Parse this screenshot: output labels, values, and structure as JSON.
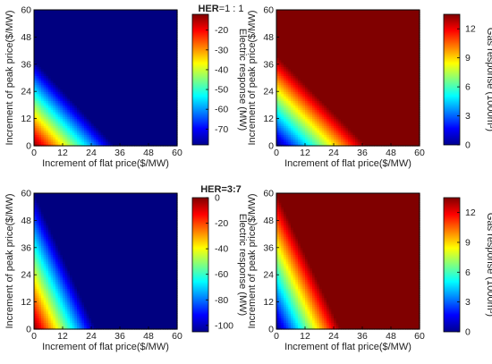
{
  "chart_data": [
    {
      "type": "heatmap",
      "title": "HER=1 : 1",
      "title_bold": "HER",
      "title_rest": "=1 : 1",
      "xlabel": "Increment of flat price($/MW)",
      "ylabel": "Increment of peak price($/MW)",
      "xlim": [
        0,
        60
      ],
      "ylim": [
        0,
        60
      ],
      "xticks": [
        0,
        12,
        24,
        36,
        48,
        60
      ],
      "yticks": [
        0,
        12,
        24,
        36,
        48,
        60
      ],
      "colorbar_label": "Electric response (MW)",
      "colorbar_ticks": [
        -20,
        -30,
        -40,
        -50,
        -60,
        -70
      ],
      "color_range": [
        -78,
        -12
      ],
      "boundary": {
        "x_intercept": 34,
        "y_intercept": 38
      },
      "value_at_origin": -12,
      "value_beyond_boundary": -78,
      "colormap": "jet"
    },
    {
      "type": "heatmap",
      "title": "",
      "xlabel": "Increment of flat price($/MW)",
      "ylabel": "Increment of peak price($/MW)",
      "xlim": [
        0,
        60
      ],
      "ylim": [
        0,
        60
      ],
      "xticks": [
        0,
        12,
        24,
        36,
        48,
        60
      ],
      "yticks": [
        0,
        12,
        24,
        36,
        48,
        60
      ],
      "colorbar_label": "Gas response (1000m³)",
      "colorbar_ticks": [
        0,
        3,
        6,
        9,
        12
      ],
      "color_range": [
        0,
        13.5
      ],
      "boundary": {
        "x_intercept": 38,
        "y_intercept": 40
      },
      "value_at_origin": 0,
      "value_beyond_boundary": 13.5,
      "colormap": "jet"
    },
    {
      "type": "heatmap",
      "title": "HER=3:7",
      "title_bold": "HER=3:7",
      "title_rest": "",
      "xlabel": "Increment of flat price($/MW)",
      "ylabel": "Increment of peak price($/MW)",
      "xlim": [
        0,
        60
      ],
      "ylim": [
        0,
        60
      ],
      "xticks": [
        0,
        12,
        24,
        36,
        48,
        60
      ],
      "yticks": [
        0,
        12,
        24,
        36,
        48,
        60
      ],
      "colorbar_label": "Electric response (MW)",
      "colorbar_ticks": [
        0,
        -20,
        -40,
        -60,
        -80,
        -100
      ],
      "color_range": [
        -105,
        0
      ],
      "boundary": {
        "x_intercept": 26,
        "y_intercept": 60
      },
      "value_at_origin": 0,
      "value_beyond_boundary": -105,
      "colormap": "jet"
    },
    {
      "type": "heatmap",
      "title": "",
      "xlabel": "Increment of flat price($/MW)",
      "ylabel": "Increment of peak price($/MW)",
      "xlim": [
        0,
        60
      ],
      "ylim": [
        0,
        60
      ],
      "xticks": [
        0,
        12,
        24,
        36,
        48,
        60
      ],
      "yticks": [
        0,
        12,
        24,
        36,
        48,
        60
      ],
      "colorbar_label": "Gas response (1000m³)",
      "colorbar_ticks": [
        0,
        3,
        6,
        9,
        12
      ],
      "color_range": [
        0,
        13.5
      ],
      "boundary": {
        "x_intercept": 27,
        "y_intercept": 60
      },
      "value_at_origin": 0,
      "value_beyond_boundary": 13.5,
      "colormap": "jet"
    }
  ]
}
